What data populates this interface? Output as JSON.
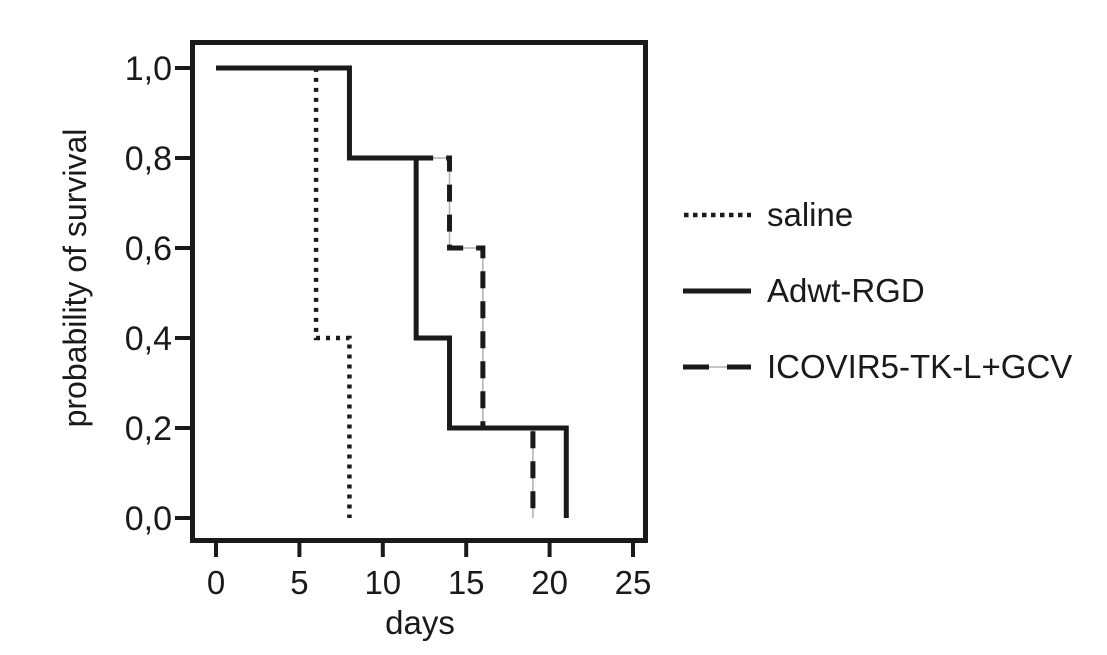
{
  "chart_data": {
    "type": "line",
    "subtype": "kaplan-meier-step",
    "title": "",
    "xlabel": "days",
    "ylabel": "probability of survival",
    "decimal_separator": ",",
    "xticks": [
      0,
      5,
      10,
      15,
      20,
      25
    ],
    "ytick_values": [
      1.0,
      0.8,
      0.6,
      0.4,
      0.2,
      0.0
    ],
    "ytick_labels": [
      "1,0",
      "0,8",
      "0,6",
      "0,4",
      "0,2",
      "0,0"
    ],
    "xlim": [
      -1.5,
      26
    ],
    "ylim": [
      -0.05,
      1.06
    ],
    "grid": "off",
    "legend_position": "right-outside",
    "axis_color": "#1a1a1a",
    "text_color": "#1a1a1a",
    "connector_color": "#b0b0b0",
    "series": [
      {
        "name": "saline",
        "line_style": "dotted",
        "color": "#1a1a1a",
        "drop_days": [
          6,
          8
        ],
        "points": [
          [
            0,
            1.0
          ],
          [
            6,
            1.0
          ],
          [
            6,
            0.4
          ],
          [
            8,
            0.4
          ],
          [
            8,
            0.0
          ]
        ]
      },
      {
        "name": "Adwt-RGD",
        "line_style": "solid",
        "color": "#1a1a1a",
        "drop_days": [
          8,
          12,
          14,
          21
        ],
        "points": [
          [
            0,
            1.0
          ],
          [
            8,
            1.0
          ],
          [
            8,
            0.8
          ],
          [
            12,
            0.8
          ],
          [
            12,
            0.4
          ],
          [
            14,
            0.4
          ],
          [
            14,
            0.2
          ],
          [
            21,
            0.2
          ],
          [
            21,
            0.0
          ]
        ]
      },
      {
        "name": "ICOVIR5-TK-L+GCV",
        "line_style": "dashed",
        "color": "#1a1a1a",
        "visible_from_day": 12,
        "drop_days": [
          14,
          16,
          19
        ],
        "points": [
          [
            12,
            0.8
          ],
          [
            14,
            0.8
          ],
          [
            14,
            0.6
          ],
          [
            16,
            0.6
          ],
          [
            16,
            0.2
          ],
          [
            19,
            0.2
          ],
          [
            19,
            0.0
          ]
        ]
      }
    ]
  }
}
